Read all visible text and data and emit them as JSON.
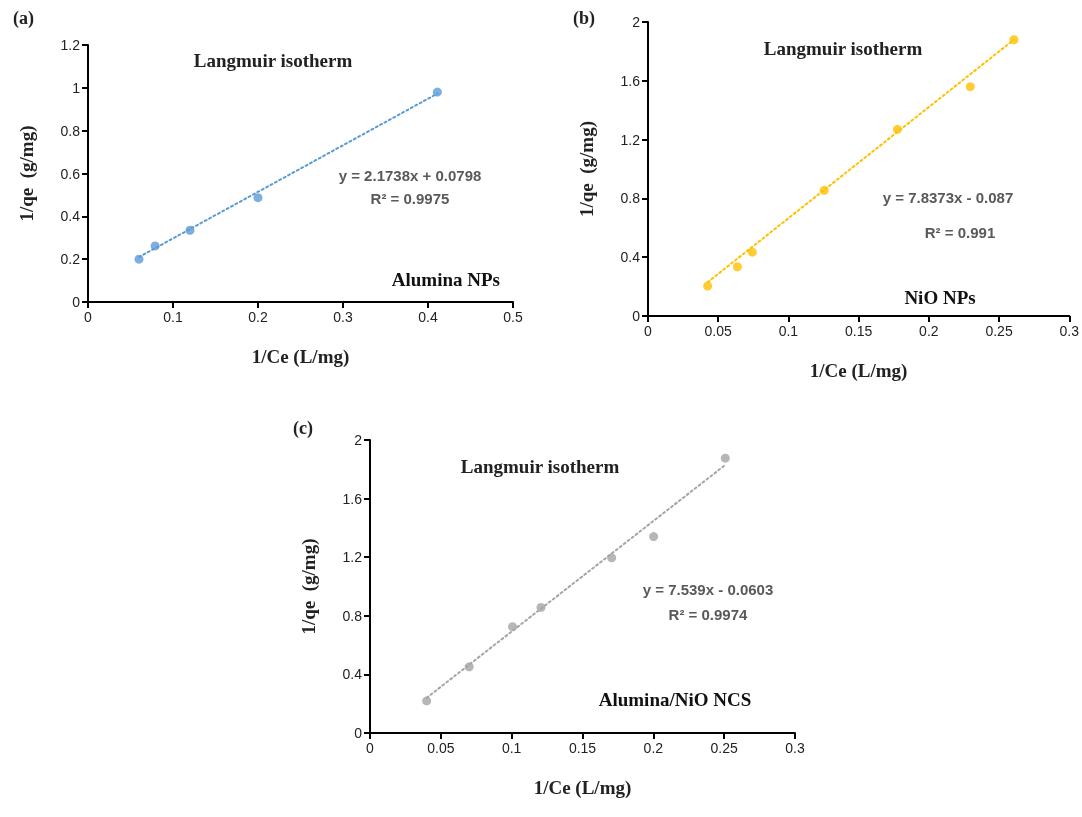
{
  "chart_data": [
    {
      "type": "scatter",
      "title": "(a)",
      "subtitle": "Langmuir isotherm",
      "xlabel": "1/Ce (L/mg)",
      "ylabel": "1/qe  (g/mg)",
      "xlim": [
        0,
        0.5
      ],
      "xticks": [
        0,
        0.1,
        0.2,
        0.3,
        0.4,
        0.5
      ],
      "ylim": [
        0,
        1.2
      ],
      "yticks": [
        0,
        0.2,
        0.4,
        0.6,
        0.8,
        1,
        1.2
      ],
      "series": [
        {
          "color": "#5b9bd5",
          "x": [
            0.06,
            0.079,
            0.12,
            0.2,
            0.411
          ],
          "values": [
            0.2,
            0.262,
            0.335,
            0.487,
            0.98
          ]
        },
        {
          "type": "line",
          "color": "#5b9bd5",
          "line_style": "dotted",
          "marker": "none",
          "x": [
            0.06,
            0.411
          ],
          "values": [
            0.21,
            0.973
          ]
        }
      ],
      "marker": "circle",
      "annotations": [
        "y = 2.1738x + 0.0798",
        "R² = 0.9975",
        "Alumina NPs"
      ]
    },
    {
      "type": "scatter",
      "title": "(b)",
      "subtitle": "Langmuir isotherm",
      "xlabel": "1/Ce (L/mg)",
      "ylabel": "1/qe  (g/mg)",
      "xlim": [
        0,
        0.3
      ],
      "xticks": [
        0,
        0.05,
        0.1,
        0.15,
        0.2,
        0.25,
        0.3
      ],
      "ylim": [
        0,
        2
      ],
      "yticks": [
        0,
        0.4,
        0.8,
        1.2,
        1.6,
        2
      ],
      "series": [
        {
          "color": "#ffc000",
          "x": [
            0.0425,
            0.0637,
            0.0743,
            0.1255,
            0.1776,
            0.2295,
            0.2606
          ],
          "values": [
            0.204,
            0.335,
            0.434,
            0.855,
            1.27,
            1.56,
            1.88
          ]
        },
        {
          "type": "line",
          "color": "#ffc000",
          "line_style": "dotted",
          "marker": "none",
          "x": [
            0.0425,
            0.2606
          ],
          "values": [
            0.23,
            1.88
          ]
        }
      ],
      "marker": "circle",
      "annotations": [
        "y = 7.8373x - 0.087",
        "R² = 0.991",
        "NiO NPs"
      ]
    },
    {
      "type": "scatter",
      "title": "(c)",
      "subtitle": "Langmuir isotherm",
      "xlabel": "1/Ce (L/mg)",
      "ylabel": "1/qe  (g/mg)",
      "xlim": [
        0,
        0.3
      ],
      "xticks": [
        0,
        0.05,
        0.1,
        0.15,
        0.2,
        0.25,
        0.3
      ],
      "ylim": [
        0,
        2
      ],
      "yticks": [
        0,
        0.4,
        0.8,
        1.2,
        1.6,
        2
      ],
      "series": [
        {
          "color": "#a5a5a5",
          "x": [
            0.04,
            0.07,
            0.1006,
            0.1207,
            0.1706,
            0.2002,
            0.2508
          ],
          "values": [
            0.219,
            0.452,
            0.726,
            0.857,
            1.196,
            1.341,
            1.876
          ]
        },
        {
          "type": "line",
          "color": "#a5a5a5",
          "line_style": "dotted",
          "marker": "none",
          "x": [
            0.04,
            0.2508
          ],
          "values": [
            0.24,
            1.83
          ]
        }
      ],
      "marker": "circle",
      "annotations": [
        "y = 7.539x - 0.0603",
        "R² = 0.9974",
        "Alumina/NiO NCS"
      ]
    }
  ]
}
